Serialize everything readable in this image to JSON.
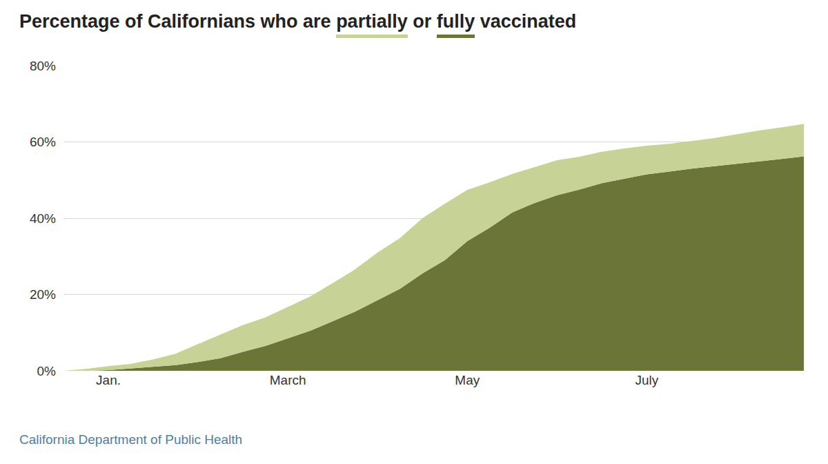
{
  "chart_data": {
    "type": "area",
    "title": "Percentage of Californians who are partially or fully vaccinated",
    "source": "California Department of Public Health",
    "stacked": true,
    "grid": true,
    "categories": [
      null,
      null,
      "Jan.",
      null,
      null,
      null,
      null,
      null,
      null,
      null,
      "March",
      null,
      null,
      null,
      null,
      null,
      null,
      null,
      "May",
      null,
      null,
      null,
      null,
      null,
      null,
      null,
      "July",
      null,
      null,
      null,
      null,
      null,
      null,
      null
    ],
    "series": [
      {
        "name": "fully",
        "color": "#6b7538",
        "values": [
          0,
          0,
          0.2,
          0.6,
          1.0,
          1.5,
          2.3,
          3.3,
          5.0,
          6.5,
          8.5,
          10.5,
          13.0,
          15.5,
          18.5,
          21.5,
          25.5,
          29.0,
          34.0,
          37.5,
          41.5,
          44.0,
          46.0,
          47.5,
          49.2,
          50.4,
          51.5,
          52.2,
          53.0,
          53.6,
          54.2,
          54.8,
          55.5,
          56.2
        ]
      },
      {
        "name": "partially",
        "color": "#c7d396",
        "values": [
          0,
          0.5,
          1.0,
          1.2,
          2.0,
          3.0,
          4.7,
          6.2,
          7.0,
          7.5,
          8.2,
          9.0,
          10.0,
          11.1,
          12.5,
          13.3,
          14.5,
          14.8,
          13.4,
          11.9,
          10.1,
          9.4,
          9.2,
          8.6,
          8.2,
          7.9,
          7.5,
          7.3,
          7.2,
          7.4,
          7.8,
          8.2,
          8.3,
          8.5
        ]
      }
    ],
    "ylim": [
      0,
      80
    ],
    "yticks": [
      {
        "value": 0,
        "label": "0%"
      },
      {
        "value": 20,
        "label": "20%"
      },
      {
        "value": 40,
        "label": "40%"
      },
      {
        "value": 60,
        "label": "60%"
      },
      {
        "value": 80,
        "label": "80%"
      }
    ]
  }
}
